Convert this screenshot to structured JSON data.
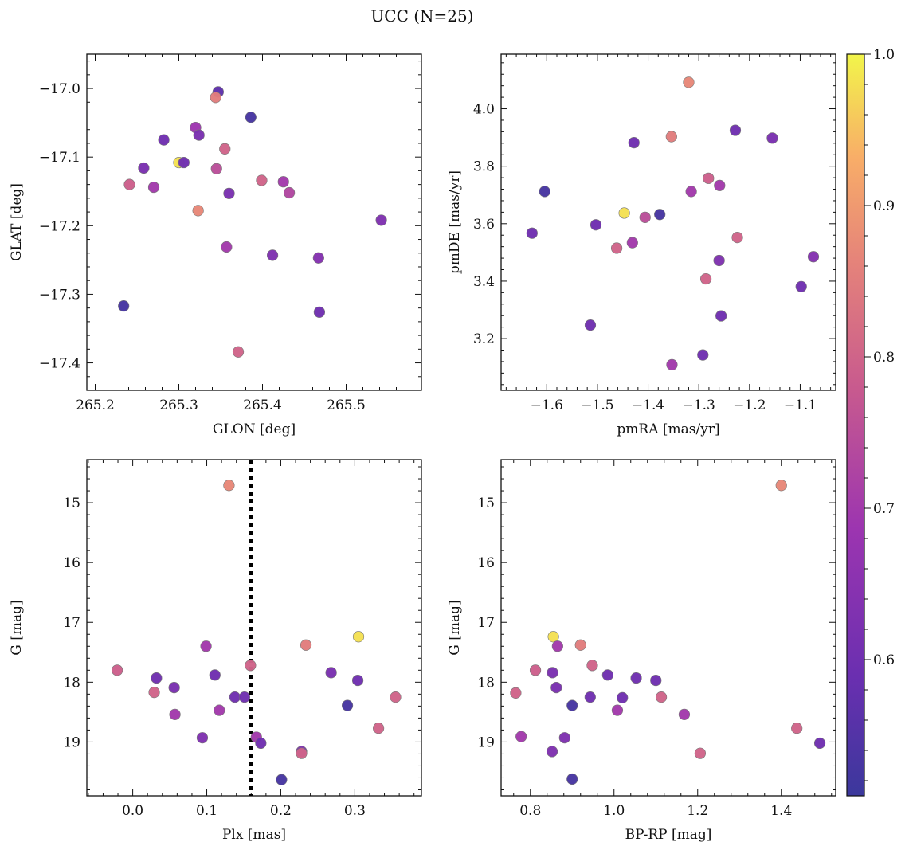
{
  "figure": {
    "title": "UCC (N=25)"
  },
  "colorbar": {
    "colormap": "plasma",
    "range": [
      0.51,
      1.0
    ],
    "ticks": [
      0.6,
      0.7,
      0.8,
      0.9,
      1.0
    ],
    "tick_labels": [
      "0.6",
      "0.7",
      "0.8",
      "0.9",
      "1.0"
    ]
  },
  "chart_data": [
    {
      "type": "scatter",
      "panel": "top-left",
      "xlabel": "GLON [deg]",
      "ylabel": "GLAT [deg]",
      "xlim": [
        265.19,
        265.59
      ],
      "ylim": [
        -17.44,
        -16.95
      ],
      "xticks": [
        265.2,
        265.3,
        265.4,
        265.5
      ],
      "xtick_labels": [
        "265.2",
        "265.3",
        "265.4",
        "265.5"
      ],
      "yticks": [
        -17.0,
        -17.1,
        -17.2,
        -17.3,
        -17.4
      ],
      "ytick_labels": [
        "−17.0",
        "−17.1",
        "−17.2",
        "−17.3",
        "−17.4"
      ],
      "points": [
        {
          "x": 265.347,
          "y": -17.005,
          "c": 0.57
        },
        {
          "x": 265.386,
          "y": -17.042,
          "c": 0.53
        },
        {
          "x": 265.344,
          "y": -17.013,
          "c": 0.85
        },
        {
          "x": 265.282,
          "y": -17.075,
          "c": 0.6
        },
        {
          "x": 265.32,
          "y": -17.057,
          "c": 0.69
        },
        {
          "x": 265.324,
          "y": -17.068,
          "c": 0.62
        },
        {
          "x": 265.355,
          "y": -17.088,
          "c": 0.8
        },
        {
          "x": 265.258,
          "y": -17.116,
          "c": 0.62
        },
        {
          "x": 265.3,
          "y": -17.108,
          "c": 0.98
        },
        {
          "x": 265.306,
          "y": -17.108,
          "c": 0.6
        },
        {
          "x": 265.345,
          "y": -17.117,
          "c": 0.75
        },
        {
          "x": 265.241,
          "y": -17.14,
          "c": 0.79
        },
        {
          "x": 265.27,
          "y": -17.144,
          "c": 0.7
        },
        {
          "x": 265.399,
          "y": -17.134,
          "c": 0.8
        },
        {
          "x": 265.425,
          "y": -17.136,
          "c": 0.7
        },
        {
          "x": 265.432,
          "y": -17.152,
          "c": 0.73
        },
        {
          "x": 265.36,
          "y": -17.153,
          "c": 0.62
        },
        {
          "x": 265.323,
          "y": -17.178,
          "c": 0.87
        },
        {
          "x": 265.542,
          "y": -17.192,
          "c": 0.63
        },
        {
          "x": 265.357,
          "y": -17.231,
          "c": 0.7
        },
        {
          "x": 265.412,
          "y": -17.243,
          "c": 0.63
        },
        {
          "x": 265.467,
          "y": -17.247,
          "c": 0.64
        },
        {
          "x": 265.468,
          "y": -17.326,
          "c": 0.6
        },
        {
          "x": 265.234,
          "y": -17.317,
          "c": 0.53
        },
        {
          "x": 265.371,
          "y": -17.384,
          "c": 0.8
        }
      ]
    },
    {
      "type": "scatter",
      "panel": "top-right",
      "xlabel": "pmRA [mas/yr]",
      "ylabel": "pmDE [mas/yr]",
      "xlim": [
        -1.69,
        -1.03
      ],
      "ylim": [
        3.02,
        4.19
      ],
      "xticks": [
        -1.6,
        -1.5,
        -1.4,
        -1.3,
        -1.2,
        -1.1
      ],
      "xtick_labels": [
        "−1.6",
        "−1.5",
        "−1.4",
        "−1.3",
        "−1.2",
        "−1.1"
      ],
      "yticks": [
        3.2,
        3.4,
        3.6,
        3.8,
        4.0
      ],
      "ytick_labels": [
        "3.2",
        "3.4",
        "3.6",
        "3.8",
        "4.0"
      ],
      "points": [
        {
          "x": -1.32,
          "y": 4.092,
          "c": 0.87
        },
        {
          "x": -1.228,
          "y": 3.925,
          "c": 0.6
        },
        {
          "x": -1.155,
          "y": 3.898,
          "c": 0.62
        },
        {
          "x": -1.354,
          "y": 3.903,
          "c": 0.85
        },
        {
          "x": -1.428,
          "y": 3.882,
          "c": 0.6
        },
        {
          "x": -1.281,
          "y": 3.758,
          "c": 0.79
        },
        {
          "x": -1.259,
          "y": 3.733,
          "c": 0.7
        },
        {
          "x": -1.315,
          "y": 3.712,
          "c": 0.7
        },
        {
          "x": -1.604,
          "y": 3.712,
          "c": 0.53
        },
        {
          "x": -1.447,
          "y": 3.637,
          "c": 0.98
        },
        {
          "x": -1.377,
          "y": 3.632,
          "c": 0.53
        },
        {
          "x": -1.406,
          "y": 3.622,
          "c": 0.75
        },
        {
          "x": -1.503,
          "y": 3.596,
          "c": 0.6
        },
        {
          "x": -1.629,
          "y": 3.567,
          "c": 0.6
        },
        {
          "x": -1.224,
          "y": 3.552,
          "c": 0.8
        },
        {
          "x": -1.431,
          "y": 3.534,
          "c": 0.7
        },
        {
          "x": -1.462,
          "y": 3.515,
          "c": 0.8
        },
        {
          "x": -1.074,
          "y": 3.485,
          "c": 0.64
        },
        {
          "x": -1.26,
          "y": 3.472,
          "c": 0.63
        },
        {
          "x": -1.286,
          "y": 3.408,
          "c": 0.8
        },
        {
          "x": -1.098,
          "y": 3.381,
          "c": 0.6
        },
        {
          "x": -1.256,
          "y": 3.279,
          "c": 0.6
        },
        {
          "x": -1.514,
          "y": 3.247,
          "c": 0.6
        },
        {
          "x": -1.292,
          "y": 3.143,
          "c": 0.6
        },
        {
          "x": -1.353,
          "y": 3.109,
          "c": 0.7
        }
      ]
    },
    {
      "type": "scatter",
      "panel": "bottom-left",
      "xlabel": "Plx [mas]",
      "ylabel": "G [mag]",
      "xlim": [
        -0.062,
        0.39
      ],
      "ylim": [
        19.9,
        14.28
      ],
      "y_inverted": true,
      "vline": 0.16,
      "xticks": [
        0.0,
        0.1,
        0.2,
        0.3
      ],
      "xtick_labels": [
        "0.0",
        "0.1",
        "0.2",
        "0.3"
      ],
      "yticks": [
        15,
        16,
        17,
        18,
        19
      ],
      "ytick_labels": [
        "15",
        "16",
        "17",
        "18",
        "19"
      ],
      "points": [
        {
          "x": 0.13,
          "y": 14.71,
          "c": 0.87
        },
        {
          "x": 0.305,
          "y": 17.24,
          "c": 0.98
        },
        {
          "x": 0.234,
          "y": 17.38,
          "c": 0.85
        },
        {
          "x": 0.099,
          "y": 17.4,
          "c": 0.7
        },
        {
          "x": 0.159,
          "y": 17.72,
          "c": 0.8
        },
        {
          "x": -0.021,
          "y": 17.8,
          "c": 0.79
        },
        {
          "x": 0.268,
          "y": 17.84,
          "c": 0.62
        },
        {
          "x": 0.111,
          "y": 17.88,
          "c": 0.6
        },
        {
          "x": 0.032,
          "y": 17.93,
          "c": 0.6
        },
        {
          "x": 0.304,
          "y": 17.97,
          "c": 0.6
        },
        {
          "x": 0.056,
          "y": 18.09,
          "c": 0.62
        },
        {
          "x": 0.029,
          "y": 18.17,
          "c": 0.8
        },
        {
          "x": 0.138,
          "y": 18.25,
          "c": 0.6
        },
        {
          "x": 0.151,
          "y": 18.25,
          "c": 0.6
        },
        {
          "x": 0.355,
          "y": 18.25,
          "c": 0.8
        },
        {
          "x": 0.29,
          "y": 18.39,
          "c": 0.53
        },
        {
          "x": 0.117,
          "y": 18.47,
          "c": 0.7
        },
        {
          "x": 0.057,
          "y": 18.54,
          "c": 0.7
        },
        {
          "x": 0.332,
          "y": 18.77,
          "c": 0.8
        },
        {
          "x": 0.094,
          "y": 18.93,
          "c": 0.63
        },
        {
          "x": 0.167,
          "y": 18.92,
          "c": 0.7
        },
        {
          "x": 0.173,
          "y": 19.02,
          "c": 0.6
        },
        {
          "x": 0.228,
          "y": 19.16,
          "c": 0.63
        },
        {
          "x": 0.228,
          "y": 19.19,
          "c": 0.8
        },
        {
          "x": 0.201,
          "y": 19.63,
          "c": 0.53
        }
      ]
    },
    {
      "type": "scatter",
      "panel": "bottom-right",
      "xlabel": "BP-RP [mag]",
      "ylabel": "G [mag]",
      "xlim": [
        0.73,
        1.53
      ],
      "ylim": [
        19.9,
        14.28
      ],
      "y_inverted": true,
      "xticks": [
        0.8,
        1.0,
        1.2,
        1.4
      ],
      "xtick_labels": [
        "0.8",
        "1.0",
        "1.2",
        "1.4"
      ],
      "yticks": [
        15,
        16,
        17,
        18,
        19
      ],
      "ytick_labels": [
        "15",
        "16",
        "17",
        "18",
        "19"
      ],
      "points": [
        {
          "x": 1.4,
          "y": 14.71,
          "c": 0.87
        },
        {
          "x": 0.855,
          "y": 17.24,
          "c": 0.98
        },
        {
          "x": 0.92,
          "y": 17.38,
          "c": 0.85
        },
        {
          "x": 0.865,
          "y": 17.4,
          "c": 0.7
        },
        {
          "x": 0.948,
          "y": 17.72,
          "c": 0.8
        },
        {
          "x": 0.812,
          "y": 17.8,
          "c": 0.79
        },
        {
          "x": 0.853,
          "y": 17.84,
          "c": 0.62
        },
        {
          "x": 0.985,
          "y": 17.88,
          "c": 0.6
        },
        {
          "x": 1.053,
          "y": 17.93,
          "c": 0.6
        },
        {
          "x": 1.1,
          "y": 17.97,
          "c": 0.6
        },
        {
          "x": 0.862,
          "y": 18.09,
          "c": 0.62
        },
        {
          "x": 0.765,
          "y": 18.18,
          "c": 0.8
        },
        {
          "x": 0.943,
          "y": 18.25,
          "c": 0.6
        },
        {
          "x": 1.02,
          "y": 18.26,
          "c": 0.6
        },
        {
          "x": 1.113,
          "y": 18.25,
          "c": 0.8
        },
        {
          "x": 0.9,
          "y": 18.39,
          "c": 0.53
        },
        {
          "x": 1.008,
          "y": 18.47,
          "c": 0.7
        },
        {
          "x": 1.168,
          "y": 18.54,
          "c": 0.7
        },
        {
          "x": 1.437,
          "y": 18.77,
          "c": 0.8
        },
        {
          "x": 0.778,
          "y": 18.91,
          "c": 0.7
        },
        {
          "x": 0.882,
          "y": 18.93,
          "c": 0.63
        },
        {
          "x": 1.492,
          "y": 19.02,
          "c": 0.6
        },
        {
          "x": 0.852,
          "y": 19.16,
          "c": 0.63
        },
        {
          "x": 1.206,
          "y": 19.19,
          "c": 0.8
        },
        {
          "x": 0.9,
          "y": 19.62,
          "c": 0.53
        }
      ]
    }
  ]
}
